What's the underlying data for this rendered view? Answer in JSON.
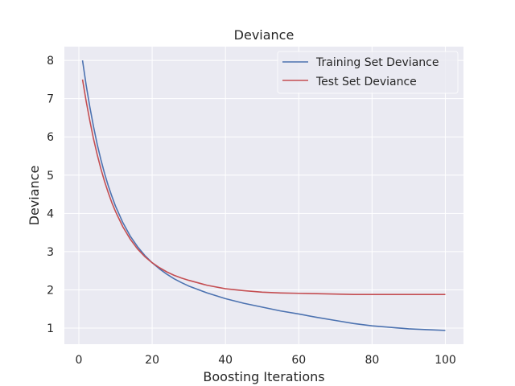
{
  "chart_data": {
    "type": "line",
    "title": "Deviance",
    "xlabel": "Boosting Iterations",
    "ylabel": "Deviance",
    "xlim": [
      -3.95,
      104.95
    ],
    "ylim": [
      0.58,
      8.36
    ],
    "xticks": [
      0,
      20,
      40,
      60,
      80,
      100
    ],
    "yticks": [
      1,
      2,
      3,
      4,
      5,
      6,
      7,
      8
    ],
    "grid": true,
    "legend_position": "top-right",
    "series": [
      {
        "name": "Training Set Deviance",
        "color": "#4c72b0",
        "x": [
          1,
          2,
          3,
          4,
          5,
          6,
          7,
          8,
          9,
          10,
          12,
          14,
          16,
          18,
          20,
          22,
          24,
          26,
          28,
          30,
          35,
          40,
          45,
          50,
          55,
          60,
          65,
          70,
          75,
          80,
          85,
          90,
          95,
          100
        ],
        "y": [
          8.0,
          7.35,
          6.78,
          6.27,
          5.81,
          5.41,
          5.05,
          4.73,
          4.45,
          4.19,
          3.76,
          3.41,
          3.13,
          2.9,
          2.71,
          2.55,
          2.41,
          2.29,
          2.19,
          2.1,
          1.92,
          1.77,
          1.65,
          1.55,
          1.45,
          1.37,
          1.28,
          1.2,
          1.12,
          1.06,
          1.02,
          0.98,
          0.96,
          0.94
        ]
      },
      {
        "name": "Test Set Deviance",
        "color": "#c44e52",
        "x": [
          1,
          2,
          3,
          4,
          5,
          6,
          7,
          8,
          9,
          10,
          12,
          14,
          16,
          18,
          20,
          22,
          24,
          26,
          28,
          30,
          35,
          40,
          45,
          50,
          55,
          60,
          65,
          70,
          75,
          80,
          85,
          90,
          95,
          100
        ],
        "y": [
          7.5,
          6.93,
          6.42,
          5.95,
          5.54,
          5.17,
          4.84,
          4.55,
          4.28,
          4.05,
          3.65,
          3.33,
          3.07,
          2.87,
          2.71,
          2.58,
          2.47,
          2.38,
          2.31,
          2.25,
          2.12,
          2.03,
          1.98,
          1.94,
          1.92,
          1.91,
          1.9,
          1.89,
          1.88,
          1.88,
          1.88,
          1.88,
          1.88,
          1.88
        ]
      }
    ]
  }
}
